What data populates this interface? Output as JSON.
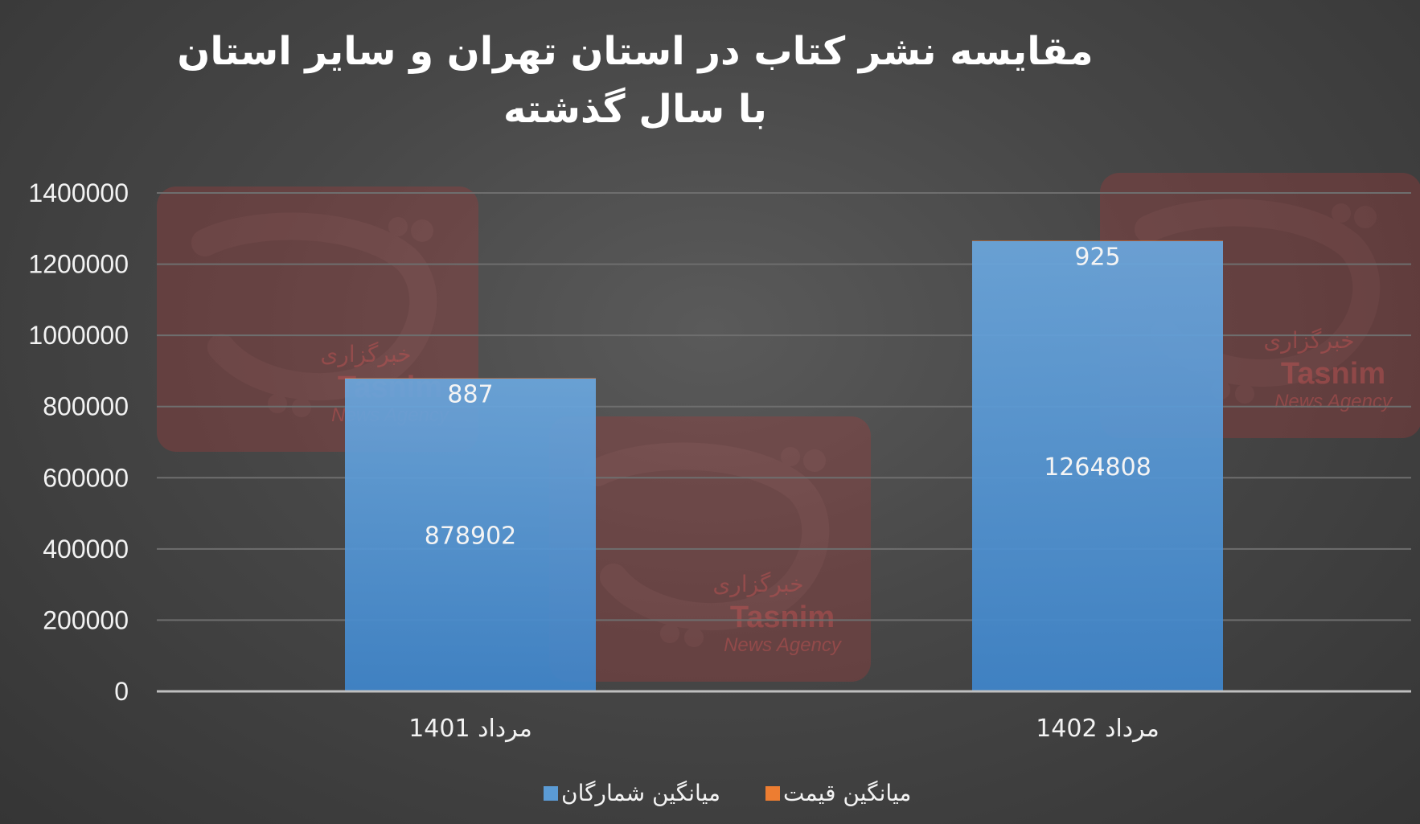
{
  "chart_data": {
    "type": "bar",
    "title": "مقایسه نشر کتاب در استان تهران و سایر استان با سال گذشته",
    "categories": [
      "مرداد 1401",
      "مرداد 1402"
    ],
    "series": [
      {
        "name": "میانگین شمارگان",
        "values": [
          878902,
          1264808
        ],
        "labels": [
          "878902",
          "1264808"
        ],
        "color": "#5b9bd5"
      },
      {
        "name": "میانگین قیمت",
        "values": [
          887,
          925
        ],
        "labels": [
          "887",
          "925"
        ],
        "color": "#ed7d31"
      }
    ],
    "ylim": [
      0,
      1400000
    ],
    "yticks": [
      "0",
      "200000",
      "400000",
      "600000",
      "800000",
      "1000000",
      "1200000",
      "1400000"
    ],
    "grid": true,
    "legend": "bottom-center",
    "stacked": true
  },
  "watermark": {
    "brand": "Tasnim",
    "subtitle": "News Agency",
    "persian": "خبرگزاری"
  }
}
